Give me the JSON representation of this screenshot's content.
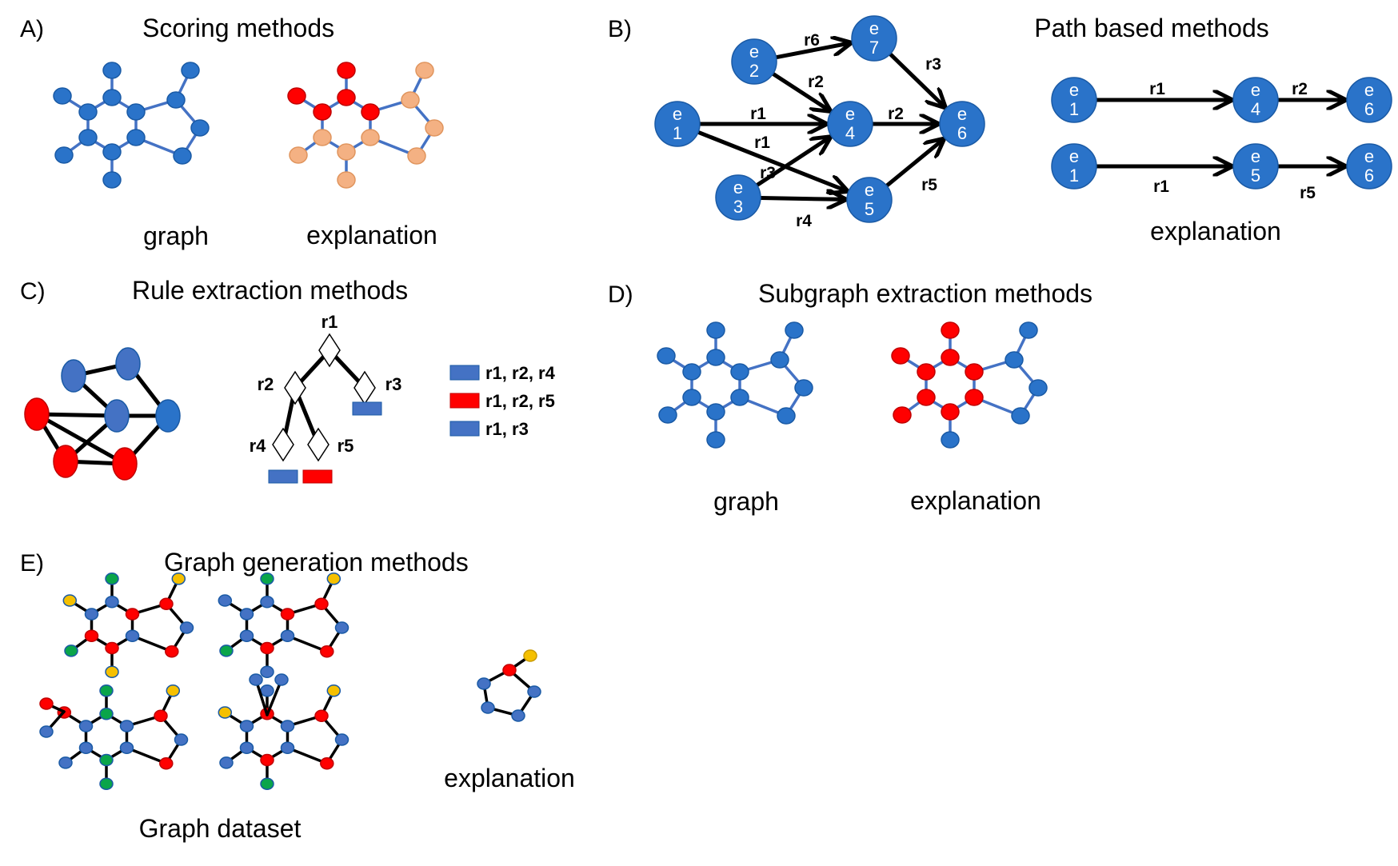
{
  "colors": {
    "blue": "#2a73c9",
    "blue_stroke": "#1a5aa5",
    "edge_blue": "#4472c4",
    "red": "#ff0000",
    "peach": "#f4b183",
    "slate": "#4472c4",
    "green": "#0aa54a",
    "yellow": "#f5c000",
    "black": "#000000"
  },
  "panels": {
    "A": {
      "label": "A)",
      "title": "Scoring methods",
      "captions": [
        "graph",
        "explanation"
      ]
    },
    "B": {
      "label": "B)",
      "title": "Path based methods",
      "caption": "explanation",
      "graph_nodes": [
        {
          "id": "e1",
          "l1": "e",
          "l2": "1"
        },
        {
          "id": "e2",
          "l1": "e",
          "l2": "2"
        },
        {
          "id": "e3",
          "l1": "e",
          "l2": "3"
        },
        {
          "id": "e4",
          "l1": "e",
          "l2": "4"
        },
        {
          "id": "e5",
          "l1": "e",
          "l2": "5"
        },
        {
          "id": "e6",
          "l1": "e",
          "l2": "6"
        },
        {
          "id": "e7",
          "l1": "e",
          "l2": "7"
        }
      ],
      "graph_edges": [
        {
          "from": "e2",
          "to": "e7",
          "label": "r6"
        },
        {
          "from": "e2",
          "to": "e4",
          "label": "r2"
        },
        {
          "from": "e1",
          "to": "e4",
          "label": "r1"
        },
        {
          "from": "e1",
          "to": "e5",
          "label": "r1"
        },
        {
          "from": "e3",
          "to": "e4",
          "label": "r3"
        },
        {
          "from": "e3",
          "to": "e5",
          "label": "r4"
        },
        {
          "from": "e4",
          "to": "e6",
          "label": "r2"
        },
        {
          "from": "e7",
          "to": "e6",
          "label": "r3"
        },
        {
          "from": "e5",
          "to": "e6",
          "label": "r5"
        }
      ],
      "paths": [
        {
          "nodes": [
            {
              "l1": "e",
              "l2": "1"
            },
            {
              "l1": "e",
              "l2": "4"
            },
            {
              "l1": "e",
              "l2": "6"
            }
          ],
          "labels": [
            "r1",
            "r2"
          ]
        },
        {
          "nodes": [
            {
              "l1": "e",
              "l2": "1"
            },
            {
              "l1": "e",
              "l2": "5"
            },
            {
              "l1": "e",
              "l2": "6"
            }
          ],
          "labels": [
            "r1",
            "r5"
          ]
        }
      ]
    },
    "C": {
      "label": "C)",
      "title": "Rule extraction methods",
      "tree_labels": [
        "r1",
        "r2",
        "r3",
        "r4",
        "r5"
      ],
      "legend": [
        {
          "text": "r1, r2, r4",
          "color": "#4472c4"
        },
        {
          "text": "r1, r2, r5",
          "color": "#ff0000"
        },
        {
          "text": "r1, r3",
          "color": "#4472c4"
        }
      ]
    },
    "D": {
      "label": "D)",
      "title": "Subgraph extraction methods",
      "captions": [
        "graph",
        "explanation"
      ]
    },
    "E": {
      "label": "E)",
      "title": "Graph generation methods",
      "captions": [
        "Graph dataset",
        "explanation"
      ]
    }
  }
}
